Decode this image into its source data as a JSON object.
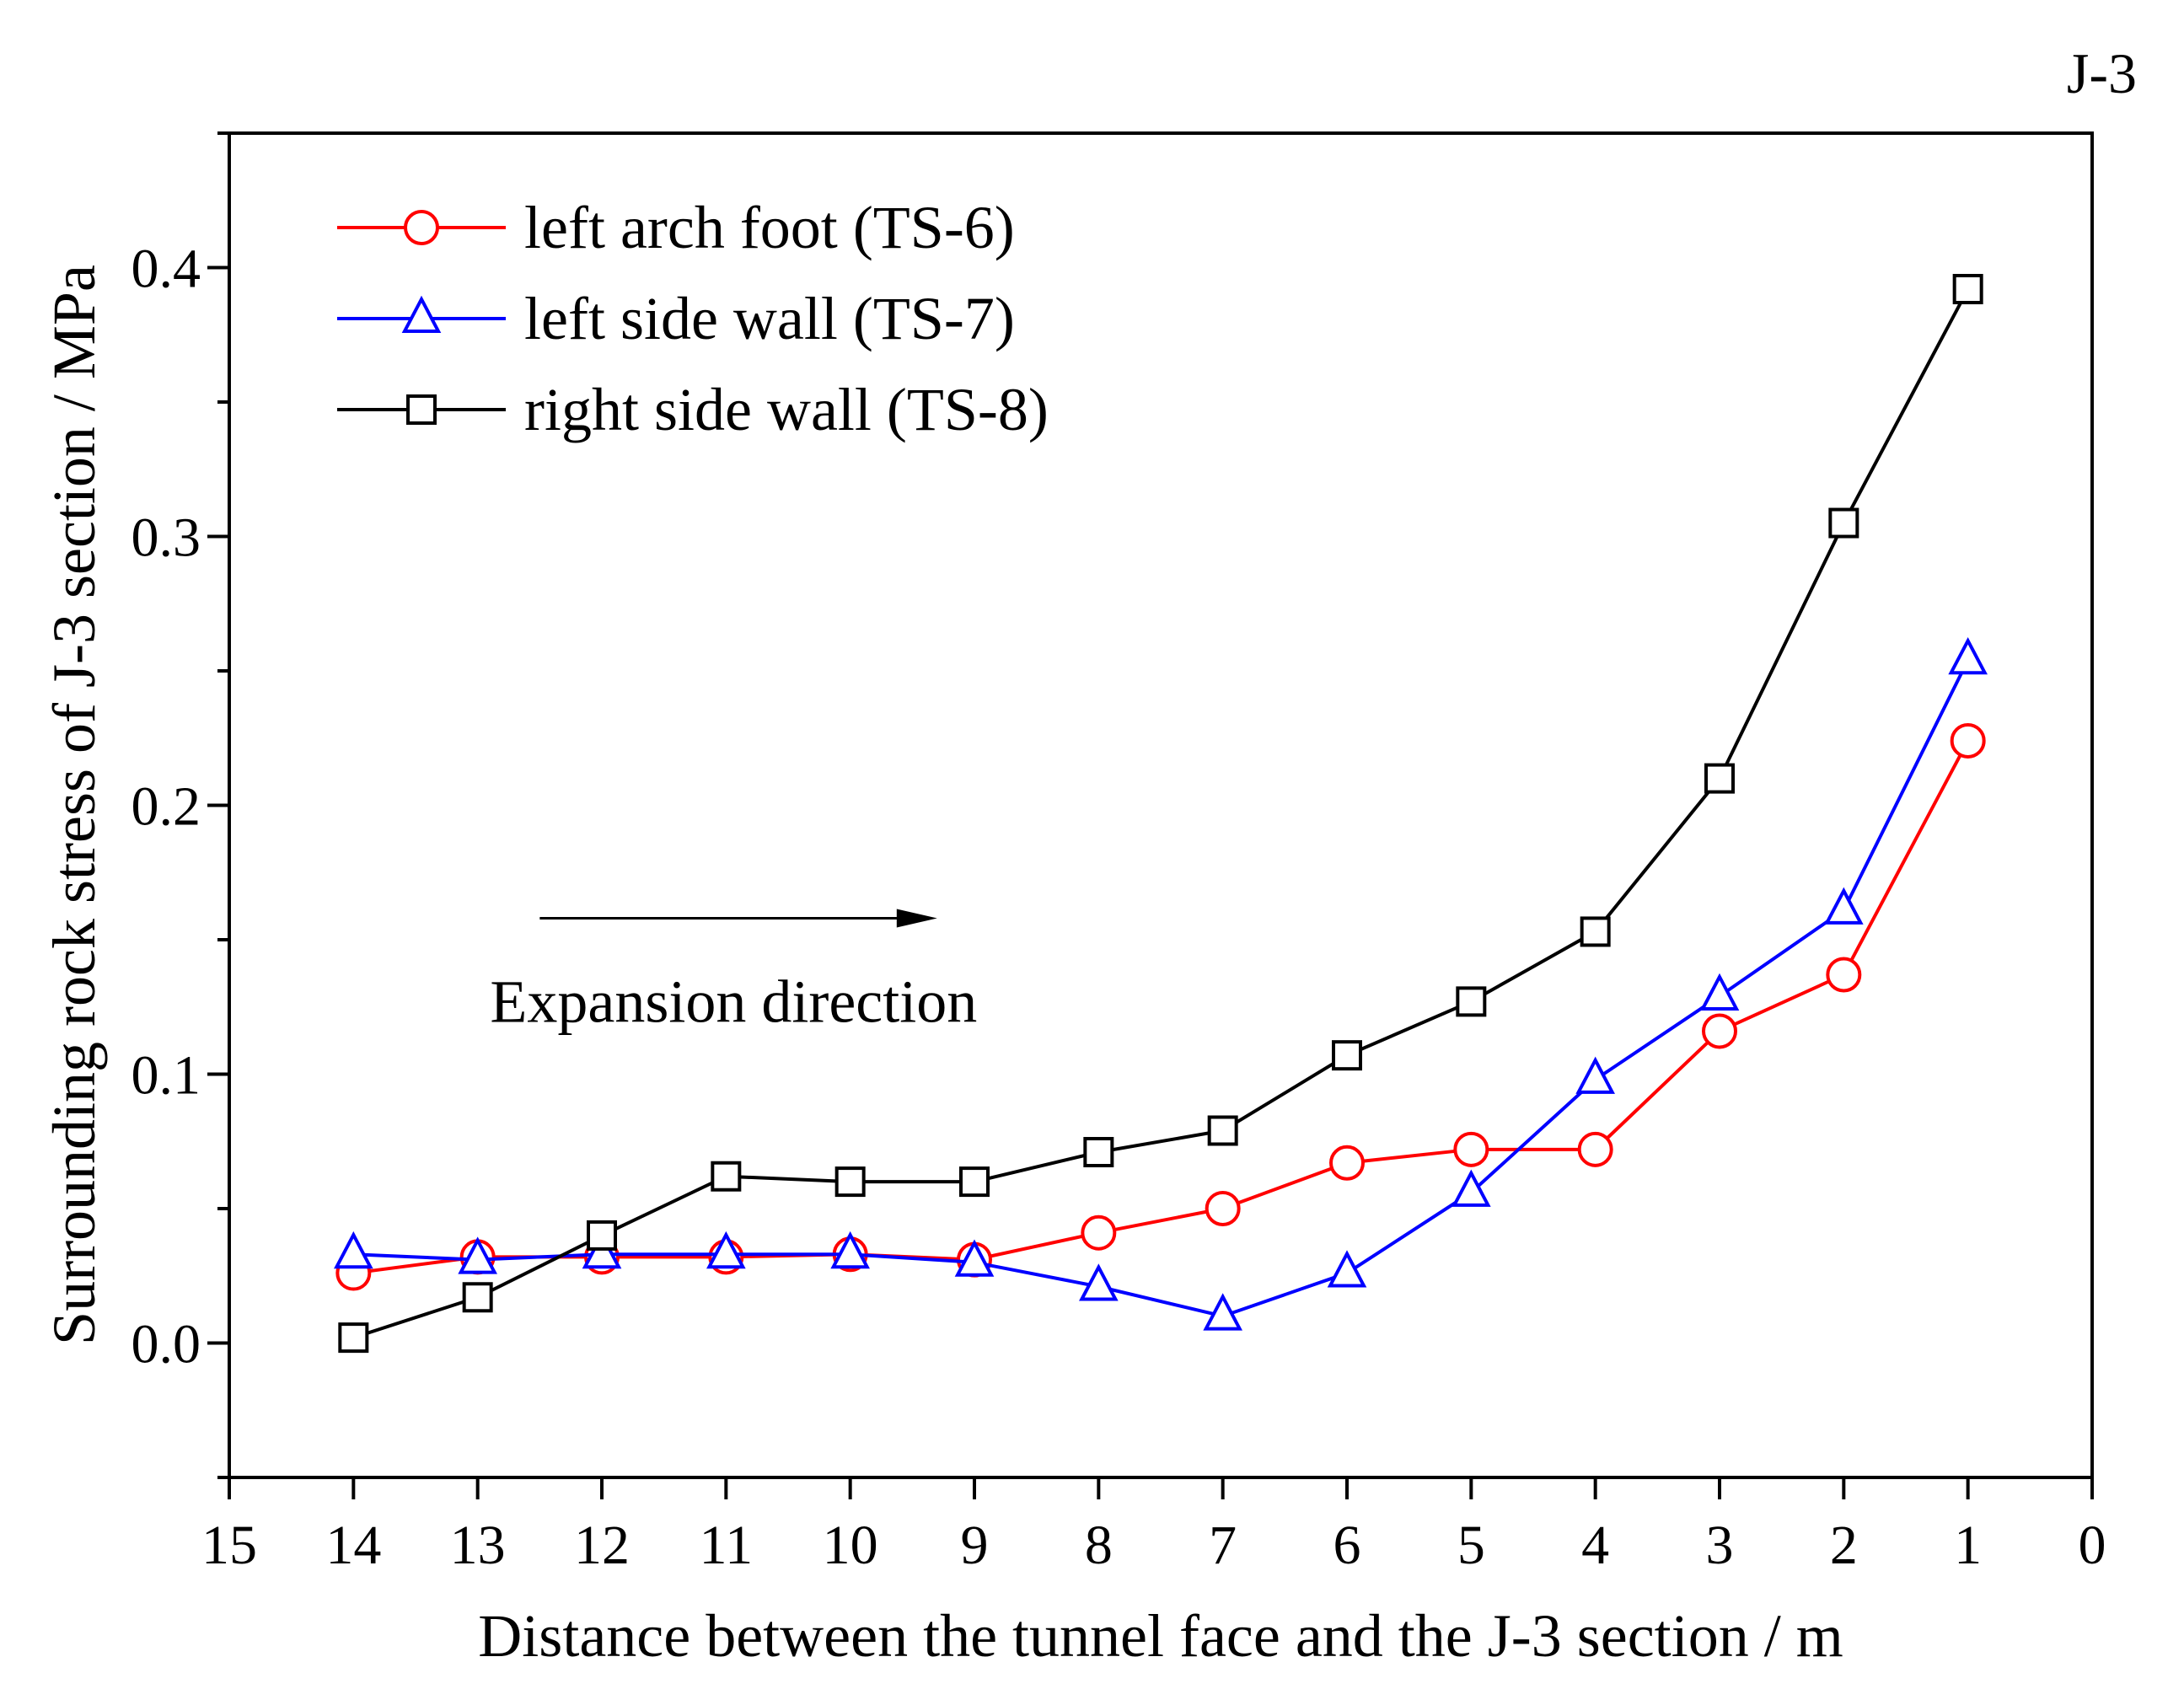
{
  "corner_label": "J-3",
  "chart_data": {
    "type": "line",
    "xlabel": "Distance between the tunnel face and the J-3 section / m",
    "ylabel": "Surrounding rock stress of J-3 section / MPa",
    "xlim": [
      15,
      0
    ],
    "ylim": [
      -0.05,
      0.45
    ],
    "xticks": [
      15,
      14,
      13,
      12,
      11,
      10,
      9,
      8,
      7,
      6,
      5,
      4,
      3,
      2,
      1,
      0
    ],
    "yticks": [
      0.0,
      0.1,
      0.2,
      0.3,
      0.4
    ],
    "ytick_labels": [
      "0.0",
      "0.1",
      "0.2",
      "0.3",
      "0.4"
    ],
    "legend_position": "top-left",
    "annotation": {
      "text": "Expansion direction",
      "arrow_from_x": 12.5,
      "arrow_to_x": 9.3,
      "arrow_y": 0.158,
      "text_x": 12.9,
      "text_y": 0.127
    },
    "x": [
      14,
      13,
      12,
      11,
      10,
      9,
      8,
      7,
      6,
      5,
      4,
      3,
      2,
      1
    ],
    "series": [
      {
        "name": "left arch foot (TS-6)",
        "color": "#ff0000",
        "marker": "circle",
        "values": [
          0.026,
          0.032,
          0.032,
          0.032,
          0.033,
          0.031,
          0.041,
          0.05,
          0.067,
          0.072,
          0.072,
          0.116,
          0.137,
          0.224
        ]
      },
      {
        "name": "left side wall (TS-7)",
        "color": "#0000ff",
        "marker": "triangle",
        "values": [
          0.033,
          0.031,
          0.033,
          0.033,
          0.033,
          0.03,
          0.021,
          0.01,
          0.026,
          0.056,
          0.098,
          0.129,
          0.161,
          0.254
        ]
      },
      {
        "name": "right side wall (TS-8)",
        "color": "#000000",
        "marker": "square",
        "values": [
          0.002,
          0.017,
          0.04,
          0.062,
          0.06,
          0.06,
          0.071,
          0.079,
          0.107,
          0.127,
          0.153,
          0.21,
          0.305,
          0.392
        ]
      }
    ]
  }
}
